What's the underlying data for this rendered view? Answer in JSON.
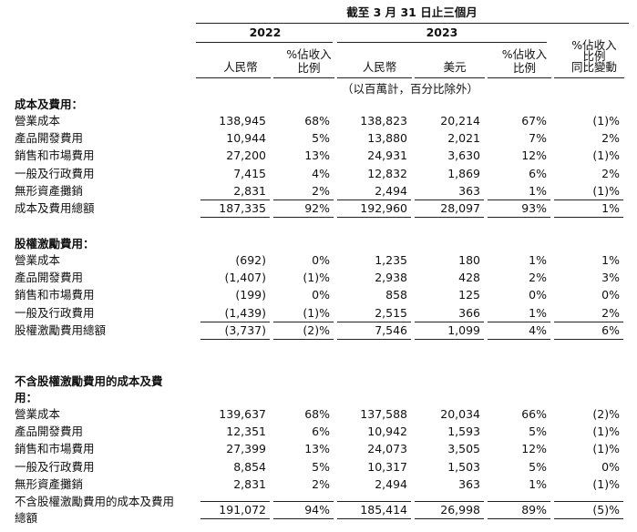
{
  "header": {
    "period": "截至 3 月 31 日止三個月",
    "years": [
      "2022",
      "2023"
    ],
    "columns": [
      [
        "人民幣"
      ],
      [
        "%佔收入",
        "比例"
      ],
      [
        "人民幣"
      ],
      [
        "美元"
      ],
      [
        "%佔收入",
        "比例"
      ],
      [
        "%佔收入",
        "比例",
        "同比變動"
      ]
    ],
    "unit_note": "（以百萬計，百分比除外）"
  },
  "sections": [
    {
      "title": [
        "成本及費用："
      ],
      "rows": [
        {
          "label": [
            "營業成本"
          ],
          "cells": [
            "138,945",
            "68%",
            "138,823",
            "20,214",
            "67%",
            "(1)%"
          ]
        },
        {
          "label": [
            "產品開發費用"
          ],
          "cells": [
            "10,944",
            "5%",
            "13,880",
            "2,021",
            "7%",
            "2%"
          ]
        },
        {
          "label": [
            "銷售和市場費用"
          ],
          "cells": [
            "27,200",
            "13%",
            "24,931",
            "3,630",
            "12%",
            "(1)%"
          ]
        },
        {
          "label": [
            "一般及行政費用"
          ],
          "cells": [
            "7,415",
            "4%",
            "12,832",
            "1,869",
            "6%",
            "2%"
          ]
        },
        {
          "label": [
            "無形資產攤銷"
          ],
          "cells": [
            "2,831",
            "2%",
            "2,494",
            "363",
            "1%",
            "(1)%"
          ]
        }
      ],
      "total": {
        "label": [
          "成本及費用總額"
        ],
        "cells": [
          "187,335",
          "92%",
          "192,960",
          "28,097",
          "93%",
          "1%"
        ]
      }
    },
    {
      "title": [
        "股權激勵費用："
      ],
      "rows": [
        {
          "label": [
            "營業成本"
          ],
          "cells": [
            "(692)",
            "0%",
            "1,235",
            "180",
            "1%",
            "1%"
          ]
        },
        {
          "label": [
            "產品開發費用"
          ],
          "cells": [
            "(1,407)",
            "(1)%",
            "2,938",
            "428",
            "2%",
            "3%"
          ]
        },
        {
          "label": [
            "銷售和市場費用"
          ],
          "cells": [
            "(199)",
            "0%",
            "858",
            "125",
            "0%",
            "0%"
          ]
        },
        {
          "label": [
            "一般及行政費用"
          ],
          "cells": [
            "(1,439)",
            "(1)%",
            "2,515",
            "366",
            "1%",
            "2%"
          ]
        }
      ],
      "total": {
        "label": [
          "股權激勵費用總額"
        ],
        "cells": [
          "(3,737)",
          "(2)%",
          "7,546",
          "1,099",
          "4%",
          "6%"
        ]
      }
    },
    {
      "title": [
        "不含股權激勵費用的成本及費",
        "用："
      ],
      "rows": [
        {
          "label": [
            "營業成本"
          ],
          "cells": [
            "139,637",
            "68%",
            "137,588",
            "20,034",
            "66%",
            "(2)%"
          ]
        },
        {
          "label": [
            "產品開發費用"
          ],
          "cells": [
            "12,351",
            "6%",
            "10,942",
            "1,593",
            "5%",
            "(1)%"
          ]
        },
        {
          "label": [
            "銷售和市場費用"
          ],
          "cells": [
            "27,399",
            "13%",
            "24,073",
            "3,505",
            "12%",
            "(1)%"
          ]
        },
        {
          "label": [
            "一般及行政費用"
          ],
          "cells": [
            "8,854",
            "5%",
            "10,317",
            "1,503",
            "5%",
            "0%"
          ]
        },
        {
          "label": [
            "無形資產攤銷"
          ],
          "cells": [
            "2,831",
            "2%",
            "2,494",
            "363",
            "1%",
            "(1)%"
          ]
        }
      ],
      "total": {
        "label": [
          "不含股權激勵費用的成本及費用",
          "總額"
        ],
        "cells": [
          "191,072",
          "94%",
          "185,414",
          "26,998",
          "89%",
          "(5)%"
        ]
      }
    }
  ]
}
